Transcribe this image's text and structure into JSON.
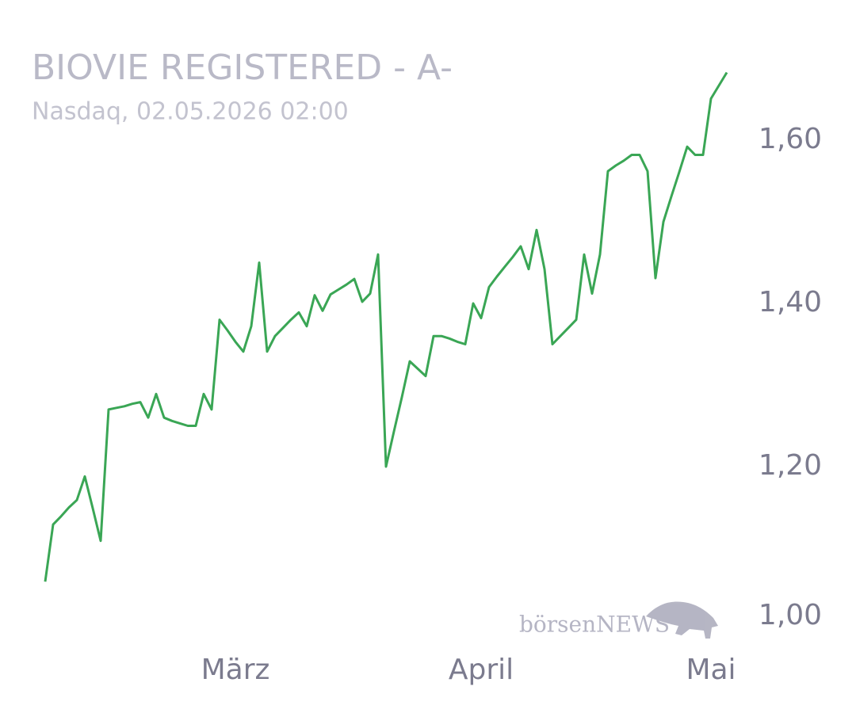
{
  "chart_data": {
    "type": "line",
    "title": "BIOVIE REGISTERED - A-",
    "subtitle": "Nasdaq, 02.05.2026 02:00",
    "watermark": "börsenNEWS",
    "categories": [
      null,
      null,
      null,
      null,
      null,
      null,
      null,
      null,
      null,
      null,
      null,
      null,
      null,
      null,
      null,
      null,
      null,
      null,
      null,
      null,
      null,
      null,
      null,
      null,
      "März",
      null,
      null,
      null,
      null,
      null,
      null,
      null,
      null,
      null,
      null,
      null,
      null,
      null,
      null,
      null,
      null,
      null,
      null,
      null,
      null,
      null,
      null,
      null,
      null,
      null,
      null,
      null,
      null,
      null,
      null,
      "April",
      null,
      null,
      null,
      null,
      null,
      null,
      null,
      null,
      null,
      null,
      null,
      null,
      null,
      null,
      null,
      null,
      null,
      null,
      null,
      null,
      null,
      null,
      null,
      null,
      null,
      null,
      null,
      null,
      "Mai",
      null,
      null
    ],
    "series": [
      {
        "name": "BIOVIE REGISTERED - A-",
        "color": "#3aa655",
        "values": [
          1.059,
          1.129,
          1.139,
          1.15,
          1.159,
          1.188,
          1.149,
          1.109,
          1.27,
          1.272,
          1.274,
          1.277,
          1.279,
          1.26,
          1.289,
          1.26,
          1.256,
          1.253,
          1.25,
          1.25,
          1.289,
          1.27,
          1.38,
          1.367,
          1.353,
          1.341,
          1.372,
          1.45,
          1.341,
          1.36,
          1.37,
          1.38,
          1.389,
          1.372,
          1.41,
          1.391,
          1.411,
          1.417,
          1.423,
          1.43,
          1.402,
          1.412,
          1.46,
          1.2,
          1.243,
          1.285,
          1.329,
          1.32,
          1.311,
          1.36,
          1.36,
          1.357,
          1.353,
          1.35,
          1.4,
          1.382,
          1.42,
          1.433,
          1.445,
          1.457,
          1.47,
          1.442,
          1.49,
          1.442,
          1.35,
          1.36,
          1.37,
          1.38,
          1.46,
          1.412,
          1.46,
          1.562,
          1.569,
          1.575,
          1.582,
          1.582,
          1.562,
          1.431,
          1.5,
          1.531,
          1.561,
          1.592,
          1.582,
          1.582,
          1.651,
          1.667,
          1.683
        ]
      }
    ],
    "ylim": [
      1.0,
      1.7
    ],
    "yticks": [
      {
        "value": 1.0,
        "label": "1,00"
      },
      {
        "value": 1.2,
        "label": "1,20"
      },
      {
        "value": 1.4,
        "label": "1,40"
      },
      {
        "value": 1.6,
        "label": "1,60"
      }
    ],
    "grid": false
  }
}
